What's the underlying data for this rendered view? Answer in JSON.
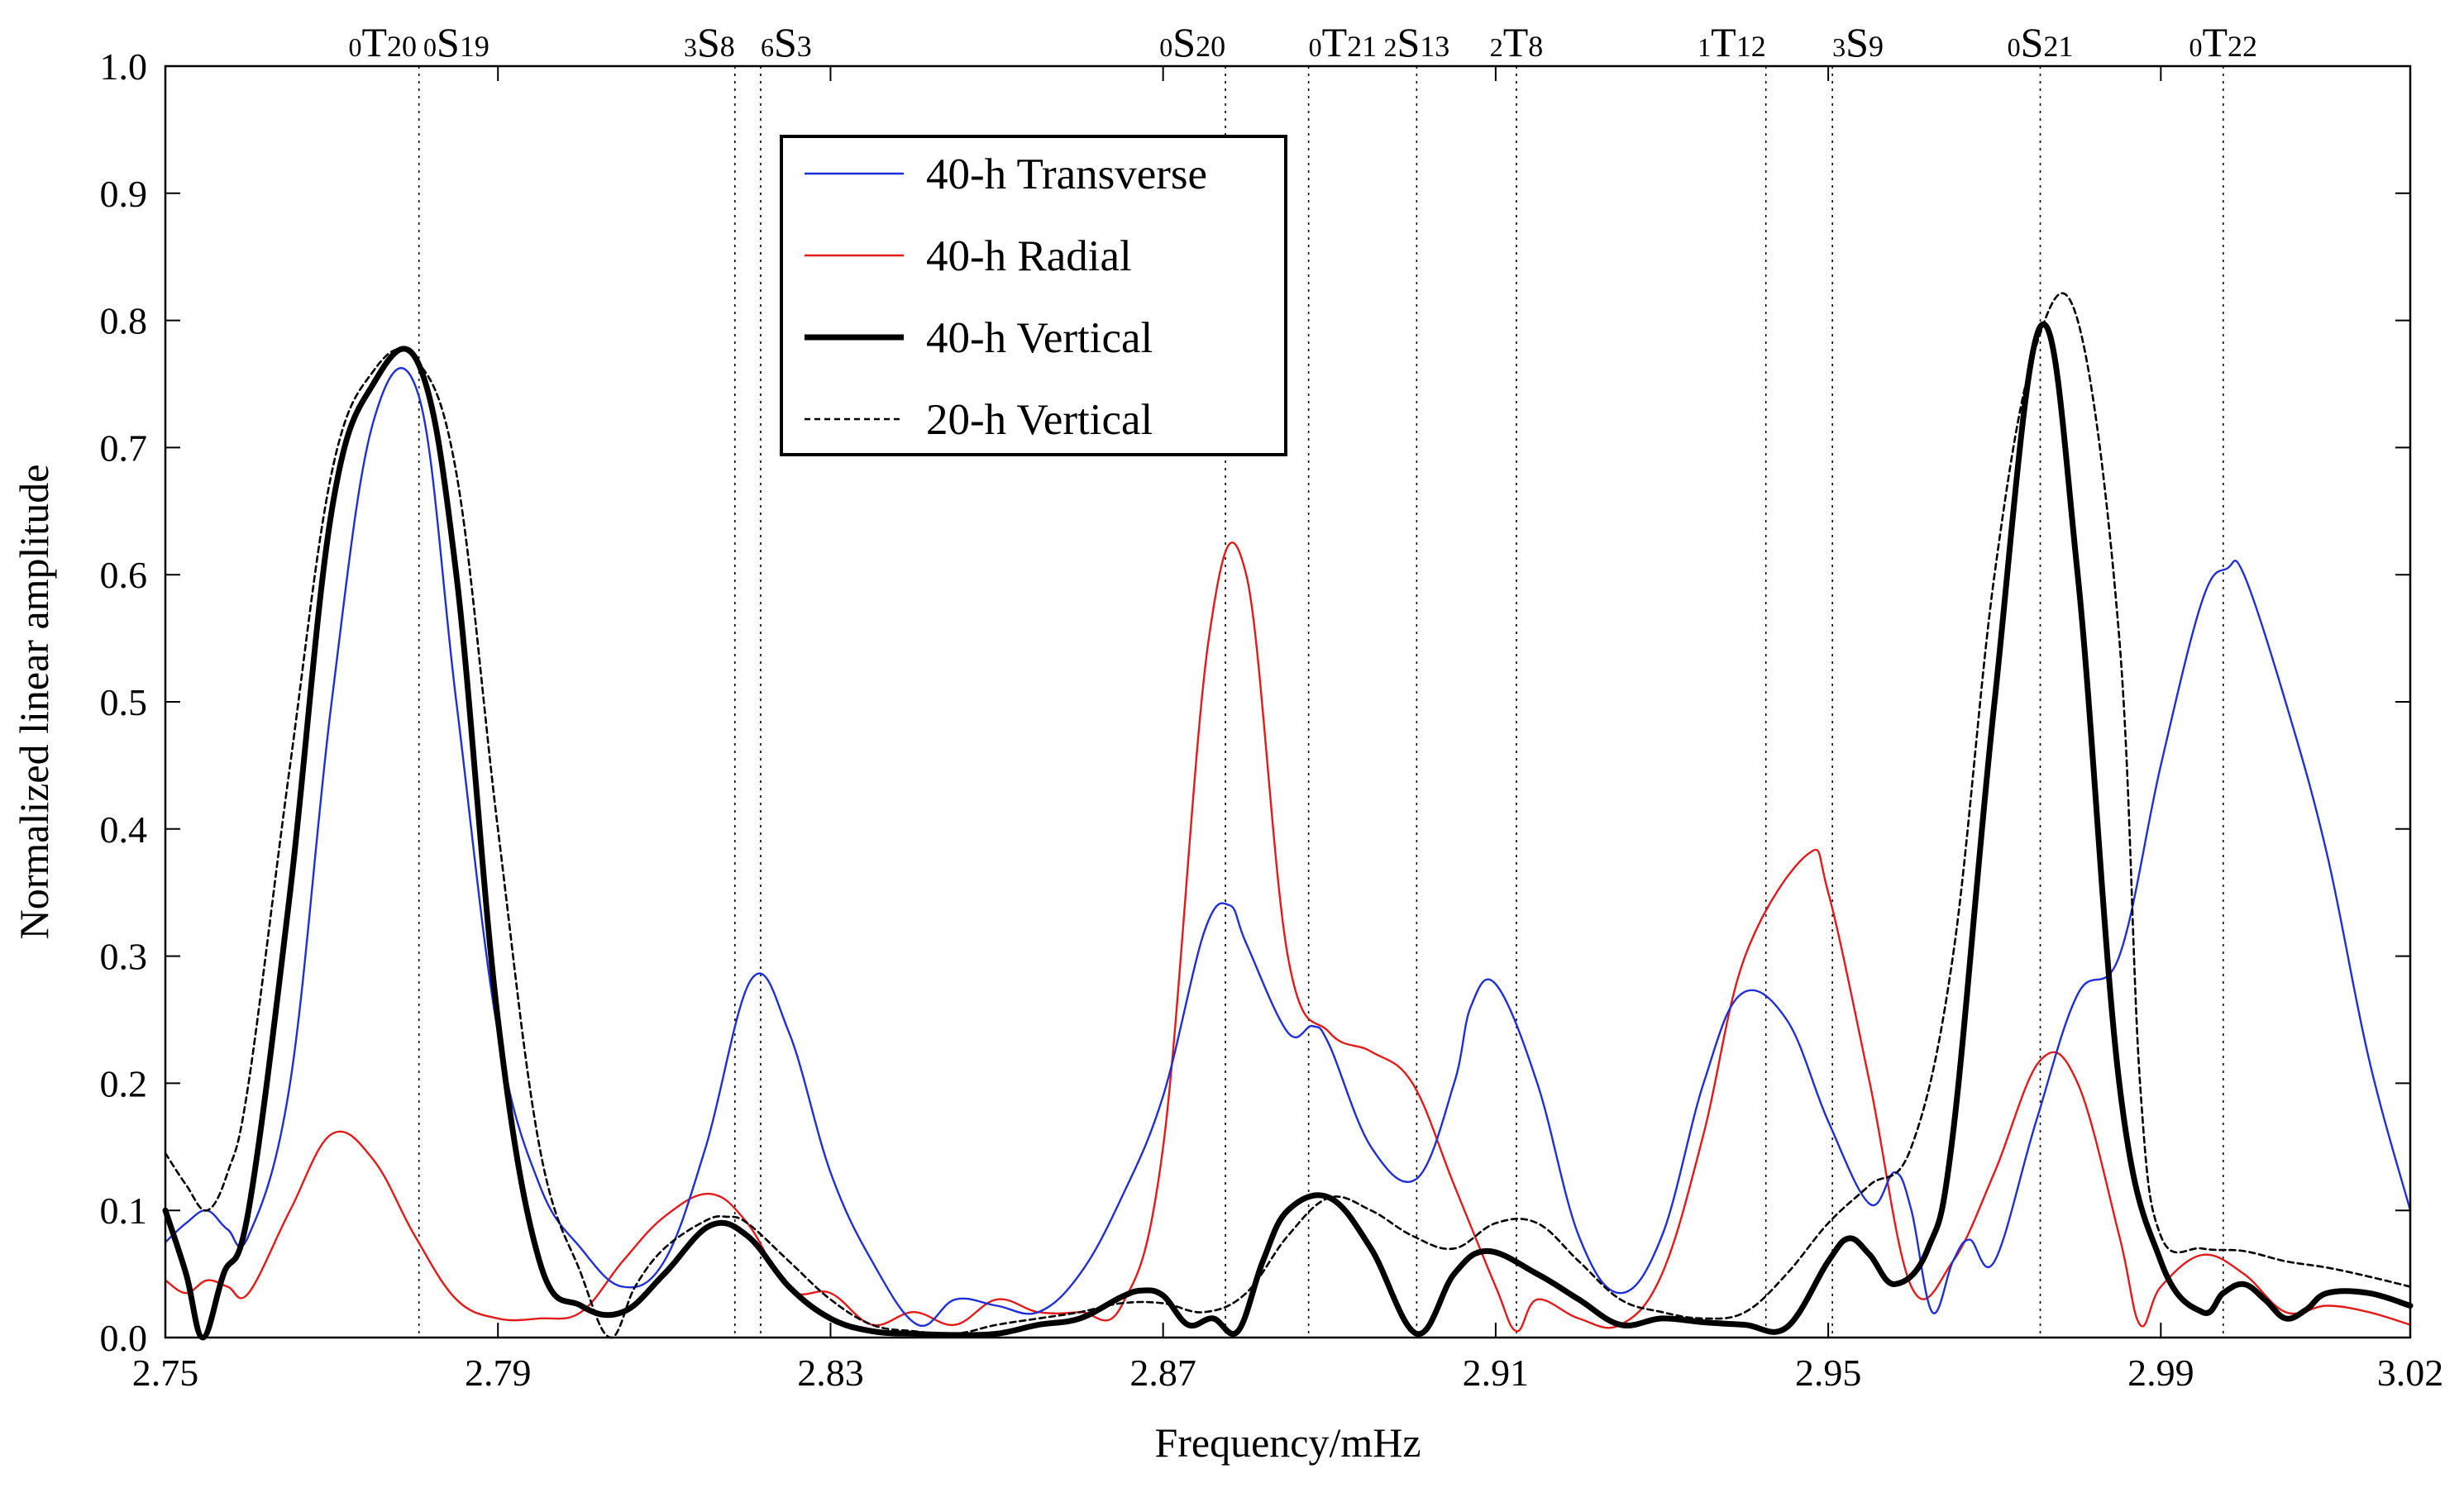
{
  "chart_data": {
    "type": "line",
    "title": "",
    "xlabel": "Frequency/mHz",
    "ylabel": "Normalized linear amplitude",
    "xlim": [
      2.75,
      3.02
    ],
    "ylim": [
      0.0,
      1.0
    ],
    "x_ticks": [
      "2.75",
      "2.79",
      "2.83",
      "2.87",
      "2.91",
      "2.95",
      "2.99",
      "3.02"
    ],
    "x_tick_values": [
      2.75,
      2.79,
      2.83,
      2.87,
      2.91,
      2.95,
      2.99,
      3.02
    ],
    "y_ticks": [
      "0.0",
      "0.1",
      "0.2",
      "0.3",
      "0.4",
      "0.5",
      "0.6",
      "0.7",
      "0.8",
      "0.9",
      "1.0"
    ],
    "y_tick_values": [
      0.0,
      0.1,
      0.2,
      0.3,
      0.4,
      0.5,
      0.6,
      0.7,
      0.8,
      0.9,
      1.0
    ],
    "grid": false,
    "legend_position": "top-center",
    "mode_lines": [
      {
        "id": "0T20-0S19",
        "x": 2.7805,
        "labels": [
          {
            "sub": "0",
            "letter": "T",
            "idx": "20"
          },
          {
            "sub": "0",
            "letter": "S",
            "idx": "19"
          }
        ]
      },
      {
        "id": "3S8",
        "x": 2.8185,
        "labels": [
          {
            "sub": "3",
            "letter": "S",
            "idx": "8"
          }
        ]
      },
      {
        "id": "6S3",
        "x": 2.8216,
        "labels": [
          {
            "sub": "6",
            "letter": "S",
            "idx": "3"
          }
        ]
      },
      {
        "id": "0S20",
        "x": 2.8775,
        "labels": [
          {
            "sub": "0",
            "letter": "S",
            "idx": "20"
          }
        ]
      },
      {
        "id": "0T21",
        "x": 2.8875,
        "labels": [
          {
            "sub": "0",
            "letter": "T",
            "idx": "21"
          }
        ]
      },
      {
        "id": "2S13",
        "x": 2.9005,
        "labels": [
          {
            "sub": "2",
            "letter": "S",
            "idx": "13"
          }
        ]
      },
      {
        "id": "2T8",
        "x": 2.9125,
        "labels": [
          {
            "sub": "2",
            "letter": "T",
            "idx": "8"
          }
        ]
      },
      {
        "id": "1T12",
        "x": 2.9425,
        "labels": [
          {
            "sub": "1",
            "letter": "T",
            "idx": "12"
          }
        ]
      },
      {
        "id": "3S9",
        "x": 2.9505,
        "labels": [
          {
            "sub": "3",
            "letter": "S",
            "idx": "9"
          }
        ]
      },
      {
        "id": "0S21",
        "x": 2.9755,
        "labels": [
          {
            "sub": "0",
            "letter": "S",
            "idx": "21"
          }
        ]
      },
      {
        "id": "0T22",
        "x": 2.9975,
        "labels": [
          {
            "sub": "0",
            "letter": "T",
            "idx": "22"
          }
        ]
      }
    ],
    "series": [
      {
        "name": "40-h Transverse",
        "color": "#1f2fd6",
        "style": "solid-thin",
        "x": [
          2.75,
          2.7525,
          2.755,
          2.7575,
          2.76,
          2.765,
          2.77,
          2.775,
          2.7805,
          2.785,
          2.79,
          2.795,
          2.8,
          2.805,
          2.81,
          2.815,
          2.8205,
          2.825,
          2.83,
          2.835,
          2.8405,
          2.845,
          2.85,
          2.855,
          2.86,
          2.865,
          2.87,
          2.875,
          2.878,
          2.88,
          2.885,
          2.888,
          2.89,
          2.895,
          2.9005,
          2.905,
          2.907,
          2.91,
          2.915,
          2.92,
          2.925,
          2.93,
          2.935,
          2.9395,
          2.945,
          2.95,
          2.955,
          2.958,
          2.96,
          2.9625,
          2.965,
          2.967,
          2.97,
          2.975,
          2.98,
          2.985,
          2.99,
          2.995,
          2.998,
          3.0,
          3.005,
          3.01,
          3.015,
          3.02
        ],
        "values": [
          0.075,
          0.09,
          0.1,
          0.085,
          0.08,
          0.2,
          0.5,
          0.72,
          0.74,
          0.5,
          0.24,
          0.12,
          0.07,
          0.04,
          0.06,
          0.15,
          0.282,
          0.24,
          0.13,
          0.06,
          0.01,
          0.03,
          0.025,
          0.02,
          0.05,
          0.11,
          0.19,
          0.32,
          0.34,
          0.31,
          0.24,
          0.245,
          0.23,
          0.15,
          0.125,
          0.2,
          0.26,
          0.278,
          0.2,
          0.08,
          0.035,
          0.08,
          0.2,
          0.27,
          0.25,
          0.17,
          0.105,
          0.13,
          0.1,
          0.02,
          0.06,
          0.077,
          0.06,
          0.17,
          0.27,
          0.3,
          0.45,
          0.58,
          0.605,
          0.6,
          0.5,
          0.38,
          0.22,
          0.1
        ]
      },
      {
        "name": "40-h Radial",
        "color": "#e31a1a",
        "style": "solid-thin",
        "x": [
          2.75,
          2.7525,
          2.755,
          2.7575,
          2.76,
          2.765,
          2.77,
          2.775,
          2.78,
          2.785,
          2.79,
          2.795,
          2.8,
          2.805,
          2.81,
          2.8155,
          2.82,
          2.825,
          2.83,
          2.835,
          2.84,
          2.845,
          2.85,
          2.855,
          2.86,
          2.865,
          2.87,
          2.8755,
          2.88,
          2.885,
          2.89,
          2.895,
          2.9,
          2.905,
          2.91,
          2.9125,
          2.915,
          2.92,
          2.925,
          2.93,
          2.935,
          2.94,
          2.9475,
          2.95,
          2.955,
          2.96,
          2.965,
          2.97,
          2.9755,
          2.98,
          2.985,
          2.9875,
          2.99,
          2.995,
          3.0,
          3.005,
          3.01,
          3.015,
          3.02
        ],
        "values": [
          0.045,
          0.035,
          0.045,
          0.04,
          0.035,
          0.1,
          0.16,
          0.14,
          0.08,
          0.03,
          0.015,
          0.015,
          0.02,
          0.06,
          0.095,
          0.113,
          0.09,
          0.038,
          0.035,
          0.01,
          0.02,
          0.01,
          0.03,
          0.02,
          0.02,
          0.025,
          0.15,
          0.55,
          0.6,
          0.3,
          0.24,
          0.225,
          0.2,
          0.12,
          0.04,
          0.005,
          0.03,
          0.015,
          0.01,
          0.05,
          0.16,
          0.3,
          0.38,
          0.35,
          0.2,
          0.04,
          0.06,
          0.13,
          0.218,
          0.2,
          0.08,
          0.01,
          0.04,
          0.065,
          0.05,
          0.02,
          0.025,
          0.02,
          0.01
        ]
      },
      {
        "name": "40-h Vertical",
        "color": "#000000",
        "style": "solid-thick",
        "x": [
          2.75,
          2.7525,
          2.7545,
          2.757,
          2.76,
          2.765,
          2.77,
          2.775,
          2.7805,
          2.785,
          2.79,
          2.795,
          2.8,
          2.805,
          2.81,
          2.8155,
          2.82,
          2.825,
          2.83,
          2.835,
          2.84,
          2.845,
          2.85,
          2.855,
          2.86,
          2.865,
          2.8675,
          2.87,
          2.873,
          2.876,
          2.879,
          2.882,
          2.885,
          2.89,
          2.895,
          2.9005,
          2.905,
          2.909,
          2.915,
          2.92,
          2.925,
          2.93,
          2.935,
          2.94,
          2.945,
          2.95,
          2.9525,
          2.955,
          2.958,
          2.962,
          2.965,
          2.97,
          2.9755,
          2.98,
          2.985,
          2.99,
          2.995,
          2.9975,
          3.0,
          3.0025,
          3.005,
          3.0075,
          3.01,
          3.015,
          3.02
        ],
        "values": [
          0.1,
          0.05,
          0.0,
          0.05,
          0.1,
          0.35,
          0.65,
          0.75,
          0.765,
          0.6,
          0.25,
          0.06,
          0.025,
          0.02,
          0.05,
          0.088,
          0.08,
          0.04,
          0.015,
          0.005,
          0.003,
          0.002,
          0.003,
          0.01,
          0.015,
          0.032,
          0.037,
          0.033,
          0.01,
          0.015,
          0.005,
          0.06,
          0.1,
          0.11,
          0.07,
          0.003,
          0.05,
          0.068,
          0.05,
          0.03,
          0.01,
          0.015,
          0.012,
          0.01,
          0.008,
          0.06,
          0.078,
          0.065,
          0.042,
          0.07,
          0.16,
          0.5,
          0.795,
          0.6,
          0.2,
          0.06,
          0.02,
          0.035,
          0.042,
          0.03,
          0.015,
          0.022,
          0.035,
          0.035,
          0.025
        ]
      },
      {
        "name": "20-h Vertical",
        "color": "#000000",
        "style": "dashed",
        "x": [
          2.75,
          2.7525,
          2.755,
          2.7575,
          2.76,
          2.765,
          2.77,
          2.775,
          2.78,
          2.785,
          2.79,
          2.795,
          2.8,
          2.8035,
          2.8065,
          2.81,
          2.815,
          2.8175,
          2.82,
          2.825,
          2.83,
          2.835,
          2.84,
          2.845,
          2.85,
          2.855,
          2.86,
          2.865,
          2.87,
          2.875,
          2.88,
          2.885,
          2.89,
          2.895,
          2.9,
          2.905,
          2.91,
          2.915,
          2.92,
          2.925,
          2.93,
          2.935,
          2.94,
          2.945,
          2.95,
          2.955,
          2.96,
          2.965,
          2.97,
          2.975,
          2.98,
          2.985,
          2.9875,
          2.99,
          2.995,
          3.0,
          3.005,
          3.01,
          3.015,
          3.02
        ],
        "values": [
          0.145,
          0.12,
          0.1,
          0.13,
          0.2,
          0.45,
          0.68,
          0.76,
          0.77,
          0.68,
          0.4,
          0.15,
          0.05,
          0.0,
          0.04,
          0.07,
          0.092,
          0.095,
          0.09,
          0.06,
          0.03,
          0.01,
          0.005,
          0.003,
          0.01,
          0.015,
          0.02,
          0.027,
          0.027,
          0.02,
          0.035,
          0.08,
          0.11,
          0.1,
          0.08,
          0.07,
          0.09,
          0.09,
          0.06,
          0.03,
          0.02,
          0.015,
          0.02,
          0.05,
          0.09,
          0.12,
          0.15,
          0.3,
          0.6,
          0.78,
          0.8,
          0.55,
          0.2,
          0.08,
          0.07,
          0.068,
          0.06,
          0.055,
          0.048,
          0.04
        ]
      }
    ]
  }
}
